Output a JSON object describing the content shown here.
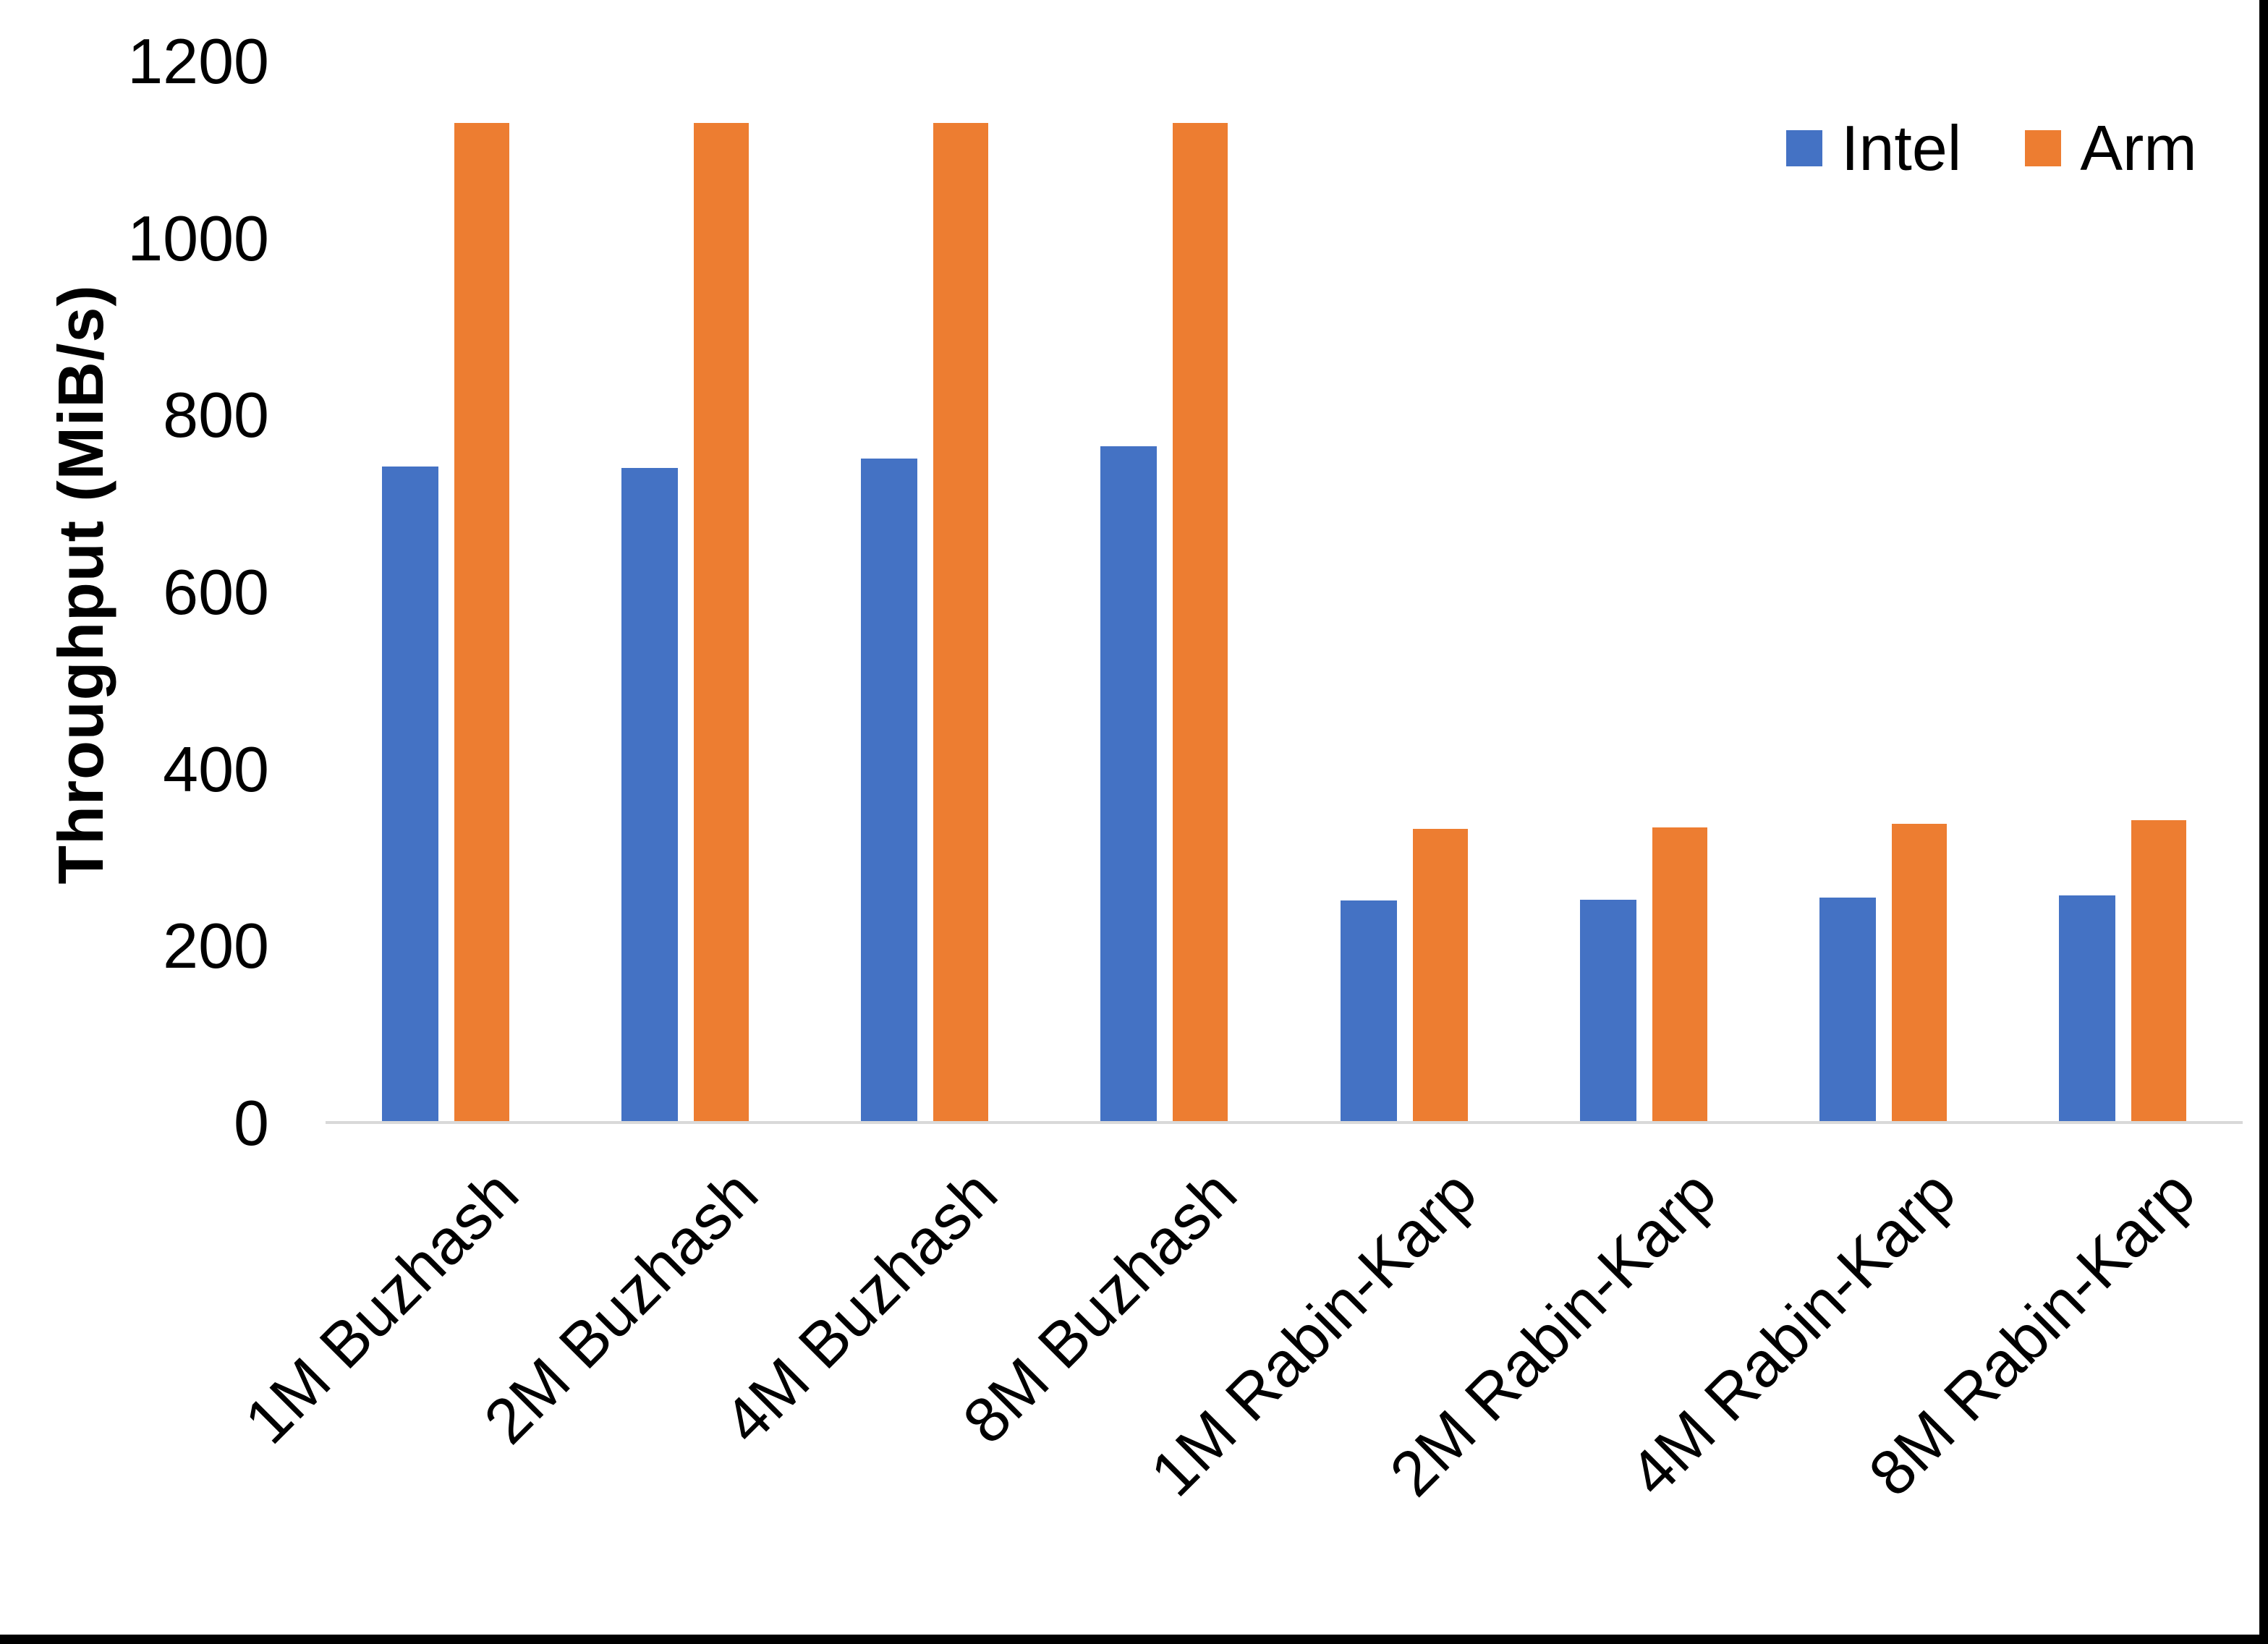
{
  "chart_data": {
    "type": "bar",
    "title": "",
    "categories": [
      "1M Buzhash",
      "2M Buzhash",
      "4M Buzhash",
      "8M Buzhash",
      "1M Rabin-Karp",
      "2M Rabin-Karp",
      "4M Rabin-Karp",
      "8M Rabin-Karp"
    ],
    "series": [
      {
        "name": "Intel",
        "color": "#4472C4",
        "values": [
          740,
          738,
          749,
          763,
          249,
          250,
          253,
          255
        ]
      },
      {
        "name": "Arm",
        "color": "#ED7D31",
        "values": [
          1128,
          1128,
          1128,
          1128,
          330,
          332,
          336,
          340
        ]
      }
    ],
    "ylabel": "Throughput (MiB/s)",
    "xlabel": "",
    "ylim": [
      0,
      1200
    ],
    "yticks": [
      0,
      200,
      400,
      600,
      800,
      1000,
      1200
    ],
    "grid": false,
    "legend_position": "top-right",
    "axis_line_color": "#D9D9D9",
    "text_color": "#000000",
    "background_color": "#FFFFFF"
  },
  "legend": {
    "intel_label": "Intel",
    "arm_label": "Arm"
  }
}
